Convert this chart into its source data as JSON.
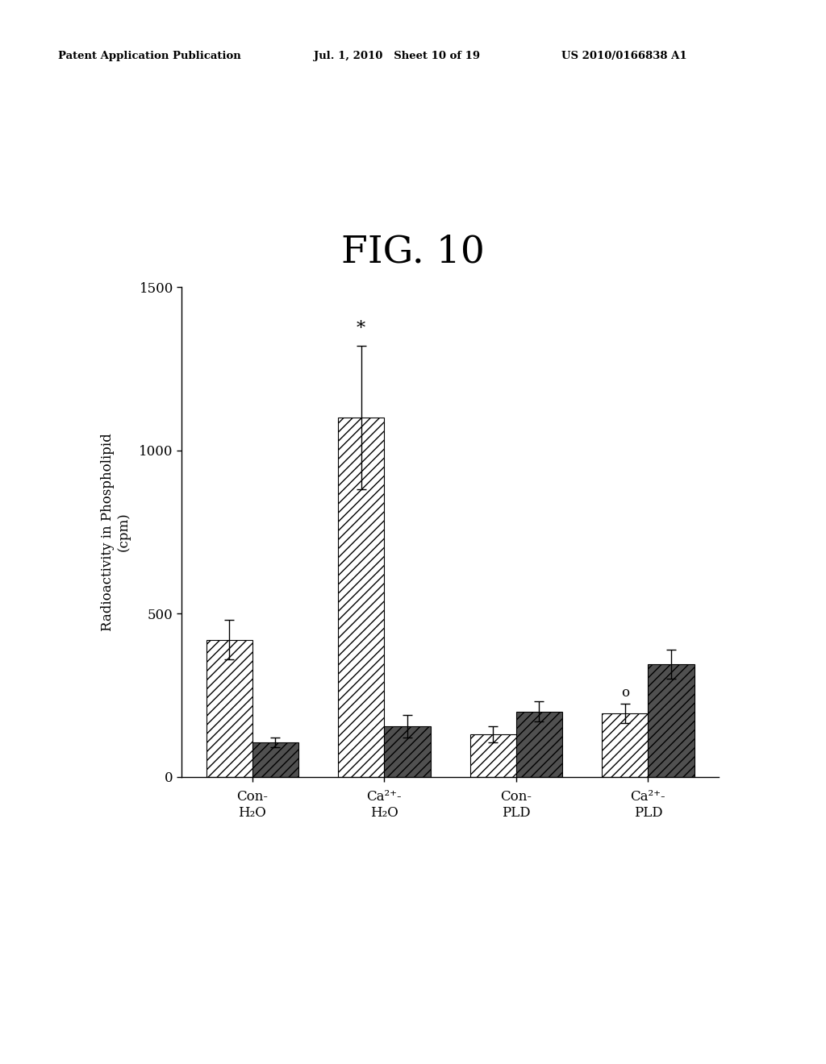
{
  "title": "FIG. 10",
  "ylabel": "Radioactivity in Phospholipid\n(cpm)",
  "categories": [
    "Con-\nH₂O",
    "Ca²⁺-\nH₂O",
    "Con-\nPLD",
    "Ca²⁺-\nPLD"
  ],
  "bar1_values": [
    420,
    1100,
    130,
    195
  ],
  "bar2_values": [
    105,
    155,
    200,
    345
  ],
  "bar1_errors": [
    60,
    220,
    25,
    30
  ],
  "bar2_errors": [
    15,
    35,
    30,
    45
  ],
  "ylim": [
    0,
    1500
  ],
  "yticks": [
    0,
    500,
    1000,
    1500
  ],
  "bar_width": 0.35,
  "header_left": "Patent Application Publication",
  "header_mid": "Jul. 1, 2010   Sheet 10 of 19",
  "header_right": "US 2010/0166838 A1",
  "background_color": "#ffffff"
}
